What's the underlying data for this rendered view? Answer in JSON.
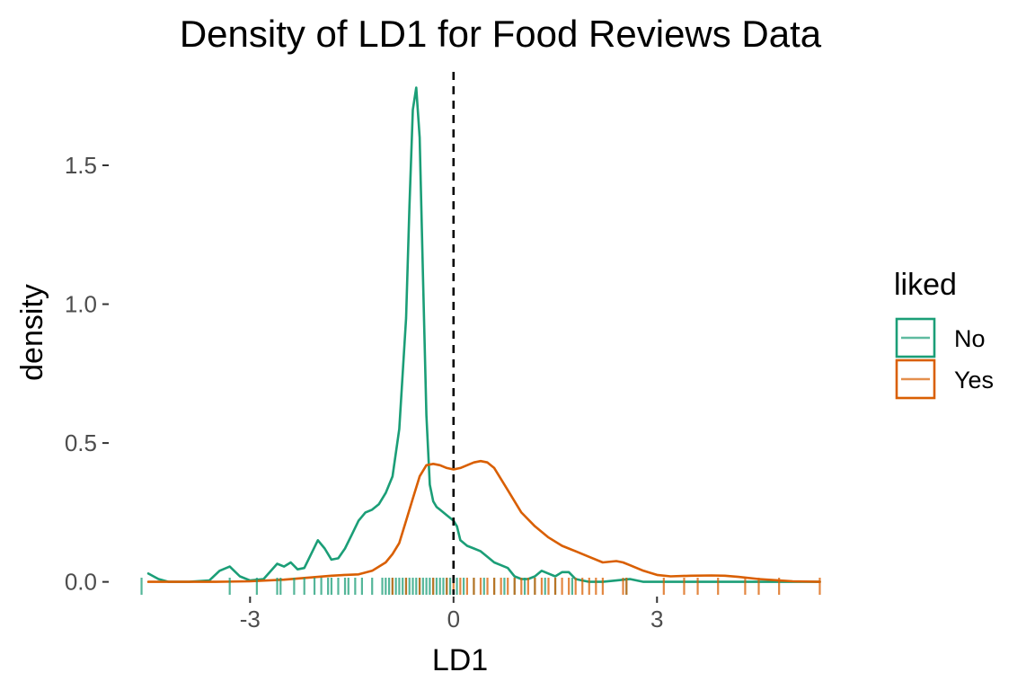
{
  "chart_data": {
    "type": "line",
    "title": "Density of LD1 for Food Reviews Data",
    "xlabel": "LD1",
    "ylabel": "density",
    "xlim": [
      -4.7,
      5.5
    ],
    "ylim": [
      -0.04,
      1.83
    ],
    "x_ticks": [
      -3,
      0,
      3
    ],
    "x_tick_labels": [
      "-3",
      "0",
      "3"
    ],
    "y_ticks": [
      0.0,
      0.5,
      1.0,
      1.5
    ],
    "y_tick_labels": [
      "0.0",
      "0.5",
      "1.0",
      "1.5"
    ],
    "grid": false,
    "vline": {
      "x": 0,
      "style": "dashed",
      "color": "#000000"
    },
    "legend": {
      "title": "liked",
      "position": "right",
      "entries": [
        {
          "label": "No",
          "color": "#1b9e77"
        },
        {
          "label": "Yes",
          "color": "#d95f02"
        }
      ]
    },
    "series": [
      {
        "name": "No",
        "color": "#1b9e77",
        "x": [
          -4.5,
          -4.35,
          -4.2,
          -3.9,
          -3.6,
          -3.45,
          -3.3,
          -3.15,
          -3.0,
          -2.8,
          -2.6,
          -2.5,
          -2.4,
          -2.3,
          -2.2,
          -2.1,
          -2.0,
          -1.9,
          -1.8,
          -1.7,
          -1.6,
          -1.5,
          -1.4,
          -1.3,
          -1.2,
          -1.1,
          -1.0,
          -0.9,
          -0.8,
          -0.7,
          -0.65,
          -0.6,
          -0.55,
          -0.5,
          -0.45,
          -0.4,
          -0.35,
          -0.3,
          -0.25,
          -0.2,
          -0.15,
          -0.1,
          -0.05,
          0.0,
          0.05,
          0.1,
          0.2,
          0.3,
          0.4,
          0.5,
          0.6,
          0.7,
          0.8,
          0.9,
          1.0,
          1.1,
          1.2,
          1.3,
          1.4,
          1.5,
          1.6,
          1.7,
          1.8,
          1.9,
          2.0,
          2.2,
          2.4,
          2.6,
          2.8,
          3.0,
          3.5,
          4.0,
          4.5,
          5.0,
          5.4
        ],
        "y": [
          0.03,
          0.01,
          0.0,
          0.0,
          0.005,
          0.04,
          0.055,
          0.02,
          0.005,
          0.01,
          0.065,
          0.055,
          0.07,
          0.045,
          0.05,
          0.1,
          0.15,
          0.12,
          0.08,
          0.085,
          0.12,
          0.17,
          0.22,
          0.25,
          0.26,
          0.28,
          0.32,
          0.38,
          0.55,
          0.95,
          1.35,
          1.7,
          1.78,
          1.6,
          1.1,
          0.6,
          0.35,
          0.29,
          0.27,
          0.26,
          0.25,
          0.24,
          0.23,
          0.22,
          0.2,
          0.15,
          0.13,
          0.12,
          0.11,
          0.09,
          0.07,
          0.06,
          0.05,
          0.02,
          0.01,
          0.01,
          0.02,
          0.04,
          0.03,
          0.02,
          0.035,
          0.035,
          0.01,
          0.005,
          0.0,
          0.0,
          0.005,
          0.01,
          0.0,
          0.0,
          0.0,
          0.0,
          0.0,
          0.0,
          0.0
        ]
      },
      {
        "name": "Yes",
        "color": "#d95f02",
        "x": [
          -4.5,
          -4.0,
          -3.5,
          -3.0,
          -2.5,
          -2.0,
          -1.8,
          -1.6,
          -1.4,
          -1.2,
          -1.0,
          -0.9,
          -0.8,
          -0.7,
          -0.6,
          -0.5,
          -0.4,
          -0.3,
          -0.2,
          -0.1,
          0.0,
          0.1,
          0.2,
          0.3,
          0.4,
          0.5,
          0.6,
          0.8,
          1.0,
          1.2,
          1.4,
          1.6,
          1.8,
          2.0,
          2.2,
          2.4,
          2.5,
          2.6,
          2.8,
          3.0,
          3.2,
          3.5,
          3.8,
          4.0,
          4.2,
          4.5,
          4.8,
          5.0,
          5.4
        ],
        "y": [
          0.0,
          0.0,
          0.0,
          0.002,
          0.008,
          0.018,
          0.022,
          0.025,
          0.027,
          0.04,
          0.07,
          0.1,
          0.14,
          0.22,
          0.3,
          0.38,
          0.42,
          0.425,
          0.42,
          0.41,
          0.405,
          0.41,
          0.42,
          0.43,
          0.435,
          0.43,
          0.41,
          0.33,
          0.25,
          0.2,
          0.16,
          0.13,
          0.11,
          0.09,
          0.07,
          0.075,
          0.07,
          0.06,
          0.04,
          0.025,
          0.02,
          0.022,
          0.023,
          0.022,
          0.018,
          0.01,
          0.005,
          0.002,
          0.0
        ]
      }
    ],
    "rug": {
      "No": [
        -4.6,
        -3.3,
        -2.9,
        -2.6,
        -2.55,
        -2.35,
        -2.2,
        -2.05,
        -1.95,
        -1.85,
        -1.8,
        -1.7,
        -1.6,
        -1.55,
        -1.45,
        -1.35,
        -1.2,
        -1.05,
        -1.0,
        -0.95,
        -0.9,
        -0.85,
        -0.8,
        -0.75,
        -0.7,
        -0.65,
        -0.6,
        -0.55,
        -0.5,
        -0.45,
        -0.4,
        -0.35,
        -0.3,
        -0.25,
        -0.2,
        -0.15,
        -0.1,
        -0.05,
        0.05,
        0.15,
        0.3,
        0.45,
        0.6,
        0.75,
        0.9,
        1.05,
        1.2,
        1.35,
        1.5,
        1.75,
        2.55
      ],
      "Yes": [
        -0.9,
        -0.7,
        -0.5,
        -0.3,
        -0.1,
        0.0,
        0.1,
        0.2,
        0.3,
        0.4,
        0.5,
        0.6,
        0.7,
        0.8,
        0.9,
        1.0,
        1.1,
        1.2,
        1.3,
        1.4,
        1.5,
        1.6,
        1.7,
        1.8,
        1.9,
        2.0,
        2.1,
        2.2,
        2.5,
        2.55,
        3.1,
        3.4,
        3.6,
        3.9,
        4.3,
        4.5,
        4.8,
        5.4
      ]
    }
  }
}
